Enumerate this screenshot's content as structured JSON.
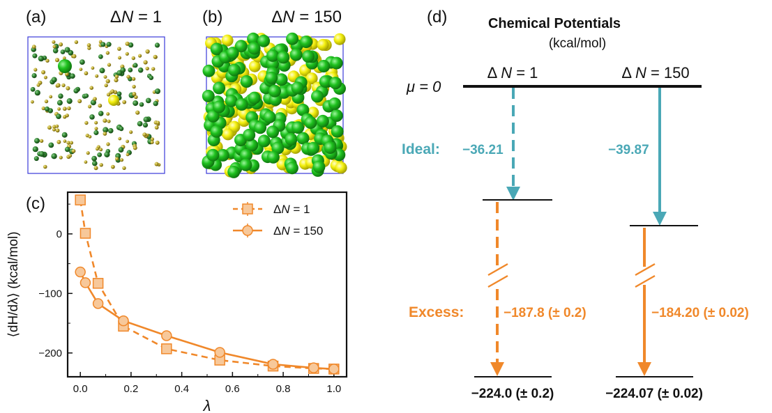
{
  "panels": {
    "a": {
      "label": "(a)",
      "title": "ΔN = 1",
      "title_prefix": "Δ",
      "title_var": "N",
      "title_suffix": " = 1"
    },
    "b": {
      "label": "(b)",
      "title": "ΔN = 150",
      "title_prefix": "Δ",
      "title_var": "N",
      "title_suffix": " = 150"
    },
    "c": {
      "label": "(c)"
    },
    "d": {
      "label": "(d)"
    }
  },
  "colors": {
    "teal": "#4aa8b6",
    "orange": "#f0882a",
    "orange_fill": "#f7c89a",
    "green": "#22b822",
    "dark_green": "#2f7d2f",
    "yellow": "#f2ee12",
    "olive": "#b7a628",
    "box": "#3a3ad8"
  },
  "chart_data": [
    {
      "type": "line",
      "panel": "(c)",
      "xlabel": "λ",
      "ylabel": "⟨dH/dλ⟩ (kcal/mol)",
      "xlim": [
        -0.05,
        1.05
      ],
      "ylim": [
        -240,
        70
      ],
      "x_ticks": [
        0.0,
        0.2,
        0.4,
        0.6,
        0.8,
        1.0
      ],
      "x_tick_labels": [
        "0.0",
        "0.2",
        "0.4",
        "0.6",
        "0.8",
        "1.0"
      ],
      "y_ticks": [
        0,
        -100,
        -200
      ],
      "y_tick_labels": [
        "0",
        "−100",
        "−200"
      ],
      "legend": {
        "placement": "top-right"
      },
      "series": [
        {
          "name": "ΔN = 1",
          "name_prefix": "Δ",
          "name_var": "N",
          "name_suffix": " = 1",
          "marker": "square",
          "line": "dashed",
          "x": [
            0.0,
            0.02,
            0.07,
            0.17,
            0.34,
            0.55,
            0.76,
            0.92,
            1.0
          ],
          "y": [
            57,
            1,
            -83,
            -155,
            -193,
            -212,
            -222,
            -226,
            -227
          ]
        },
        {
          "name": "ΔN = 150",
          "name_prefix": "Δ",
          "name_var": "N",
          "name_suffix": " = 150",
          "marker": "circle",
          "line": "solid",
          "x": [
            0.0,
            0.02,
            0.07,
            0.17,
            0.34,
            0.55,
            0.76,
            0.92,
            1.0
          ],
          "y": [
            -64,
            -82,
            -117,
            -146,
            -171,
            -199,
            -219,
            -225,
            -227
          ]
        }
      ]
    },
    {
      "type": "diagram",
      "panel": "(d)",
      "title": "Chemical Potentials",
      "subtitle": "(kcal/mol)",
      "zero_label": "μ = 0",
      "ideal_label": "Ideal:",
      "excess_label": "Excess:",
      "columns": [
        {
          "header": "Δ N = 1",
          "header_prefix": "Δ ",
          "header_var": "N",
          "header_suffix": " = 1",
          "ideal": "−36.21",
          "excess": "−187.8 (± 0.2)",
          "total": "−224.0 (± 0.2)",
          "line": "dashed"
        },
        {
          "header": "Δ N = 150",
          "header_prefix": "Δ ",
          "header_var": "N",
          "header_suffix": " = 150",
          "ideal": "−39.87",
          "excess": "−184.20 (± 0.02)",
          "total": "−224.07 (± 0.02)",
          "line": "solid"
        }
      ]
    }
  ]
}
